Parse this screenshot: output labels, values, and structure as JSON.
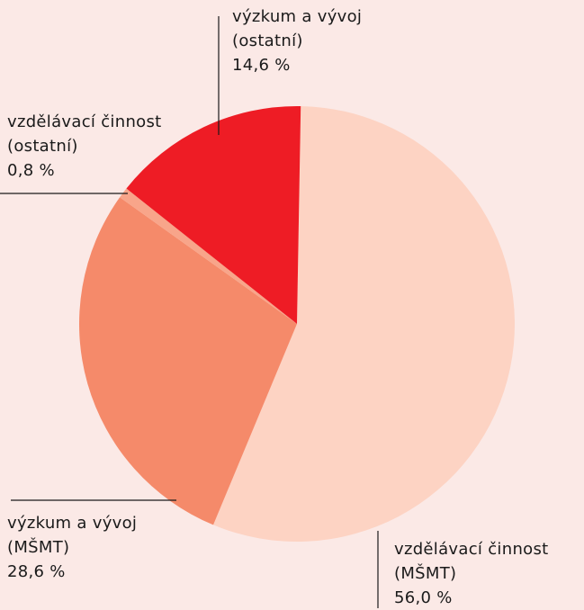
{
  "chart_data": {
    "type": "pie",
    "categories": [
      "vzdělávací činnost (MŠMT)",
      "výzkum a vývoj (MŠMT)",
      "vzdělávací činnost (ostatní)",
      "výzkum a vývoj (ostatní)"
    ],
    "values": [
      56.0,
      28.6,
      0.8,
      14.6
    ],
    "value_labels": [
      "56,0 %",
      "28,6 %",
      "0,8 %",
      "14,6 %"
    ],
    "colors": [
      "#fdd3c3",
      "#f58a6a",
      "#f8a58a",
      "#ee1c25"
    ]
  }
}
